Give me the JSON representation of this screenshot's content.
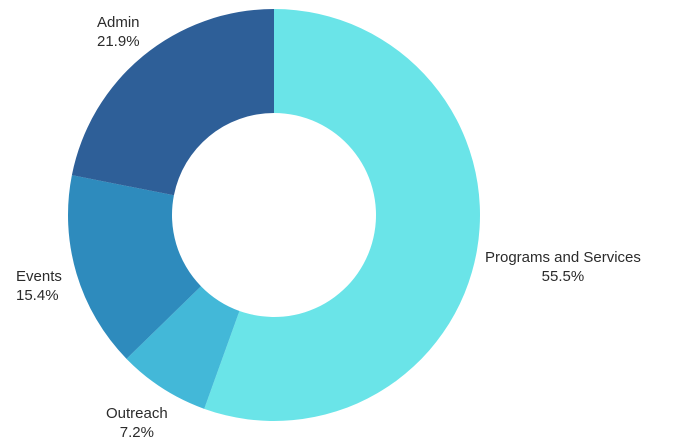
{
  "chart_data": {
    "type": "pie",
    "donut": true,
    "slices": [
      {
        "label": "Programs and Services",
        "value": 55.5,
        "value_text": "55.5%",
        "color": "#6ae4e8"
      },
      {
        "label": "Outreach",
        "value": 7.2,
        "value_text": "7.2%",
        "color": "#43b8d8"
      },
      {
        "label": "Events",
        "value": 15.4,
        "value_text": "15.4%",
        "color": "#2e8bbd"
      },
      {
        "label": "Admin",
        "value": 21.9,
        "value_text": "21.9%",
        "color": "#2e5f98"
      }
    ],
    "start_angle": "12 o'clock",
    "direction": "clockwise",
    "legend": "none"
  }
}
